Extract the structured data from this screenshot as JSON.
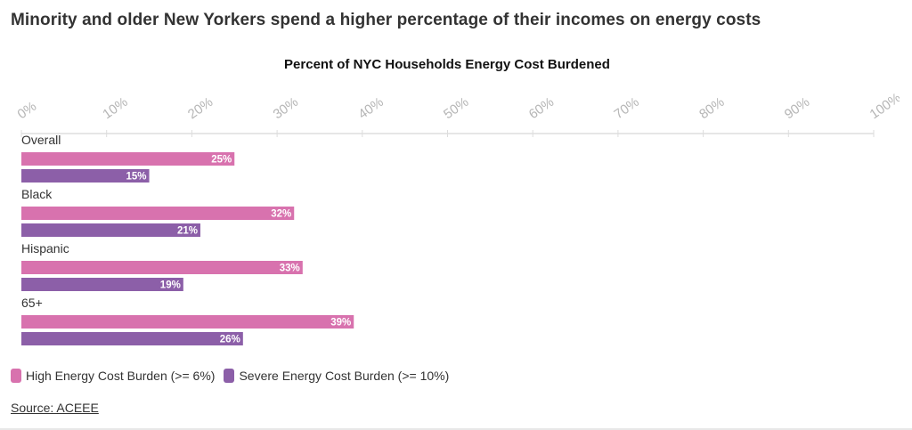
{
  "page": {
    "headline": "Minority and older New Yorkers spend a higher percentage of their incomes on energy costs",
    "source_label": "Source: ACEEE"
  },
  "chart_data": {
    "type": "bar",
    "orientation": "horizontal",
    "title": "Percent of NYC Households Energy Cost Burdened",
    "categories": [
      "Overall",
      "Black",
      "Hispanic",
      "65+"
    ],
    "series": [
      {
        "name": "High Energy Cost Burden (>= 6%)",
        "values": [
          25,
          32,
          33,
          39
        ],
        "color": "#d872ae"
      },
      {
        "name": "Severe Energy Cost Burden (>= 10%)",
        "values": [
          15,
          21,
          19,
          26
        ],
        "color": "#8c5fa8"
      }
    ],
    "value_labels": [
      [
        "25%",
        "32%",
        "33%",
        "39%"
      ],
      [
        "15%",
        "21%",
        "19%",
        "26%"
      ]
    ],
    "xlim": [
      0,
      100
    ],
    "xticks": [
      0,
      10,
      20,
      30,
      40,
      50,
      60,
      70,
      80,
      90,
      100
    ],
    "xtick_labels": [
      "0%",
      "10%",
      "20%",
      "30%",
      "40%",
      "50%",
      "60%",
      "70%",
      "80%",
      "90%",
      "100%"
    ],
    "xlabel": "",
    "ylabel": "",
    "grid": false,
    "legend_position": "bottom-left"
  }
}
